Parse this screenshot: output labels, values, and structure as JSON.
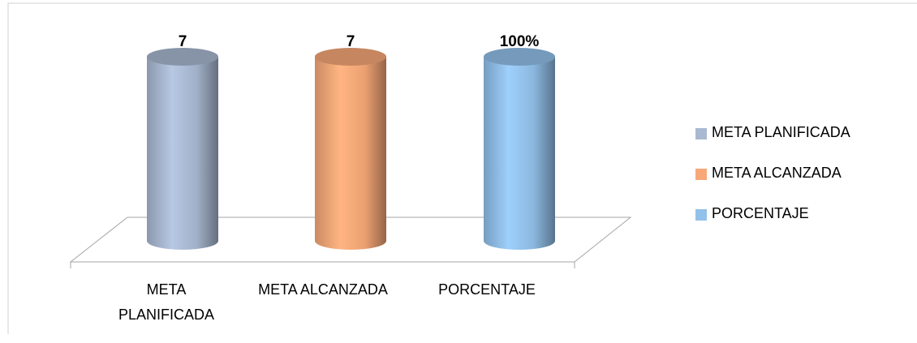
{
  "chart_data": {
    "type": "bar3d",
    "categories": [
      "META PLANIFICADA",
      "META ALCANZADA",
      "PORCENTAJE"
    ],
    "series": [
      {
        "name": "META PLANIFICADA",
        "color": "#a9b9d2",
        "values": [
          7,
          null,
          null
        ]
      },
      {
        "name": "META ALCANZADA",
        "color": "#f8a878",
        "values": [
          null,
          7,
          null
        ]
      },
      {
        "name": "PORCENTAJE",
        "color": "#92c1ea",
        "axis": "y2",
        "values": [
          null,
          null,
          100
        ],
        "value_labels": [
          null,
          null,
          "100%"
        ]
      }
    ],
    "ylim": [
      0,
      7
    ],
    "y2lim": [
      0,
      100
    ],
    "legend": "right"
  }
}
